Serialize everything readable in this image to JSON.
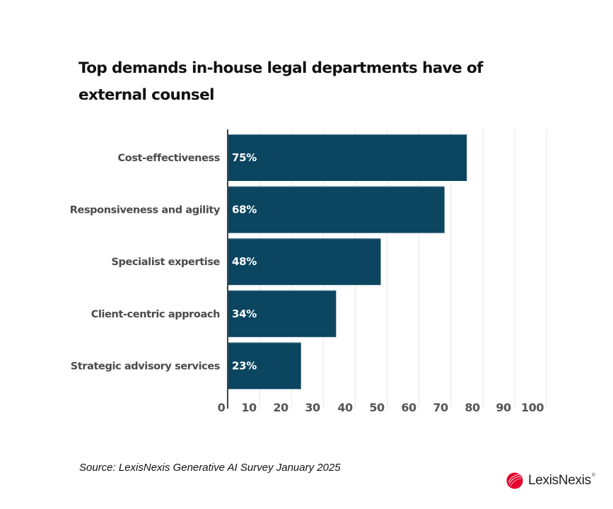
{
  "chart_data": {
    "type": "bar",
    "orientation": "horizontal",
    "title": "Top demands in-house legal departments have of external counsel",
    "categories": [
      "Cost-effectiveness",
      "Responsiveness and agility",
      "Specialist expertise",
      "Client-centric approach",
      "Strategic advisory services"
    ],
    "values": [
      75,
      68,
      48,
      34,
      23
    ],
    "value_labels": [
      "75%",
      "68%",
      "48%",
      "34%",
      "23%"
    ],
    "xlabel": "",
    "ylabel": "",
    "xlim": [
      0,
      100
    ],
    "x_ticks": [
      0,
      10,
      20,
      30,
      40,
      50,
      60,
      70,
      80,
      90,
      100
    ],
    "x_tick_labels": [
      "0",
      "10",
      "20",
      "30",
      "40",
      "50",
      "60",
      "70",
      "80",
      "90",
      "100"
    ],
    "grid": true,
    "legend": "none",
    "colors": {
      "bar": "#0b4560",
      "bar_edge": "#5a8396",
      "grid": "#e6e6e6",
      "axis": "#444444"
    }
  },
  "title_line1": "Top demands in-house legal departments have of",
  "title_line2": "external counsel",
  "source": "Source: LexisNexis Generative AI Survey January 2025",
  "logo": {
    "name": "LexisNexis",
    "reg": "®",
    "icon": "lexisnexis-logo-icon",
    "color": "#e4002b"
  }
}
